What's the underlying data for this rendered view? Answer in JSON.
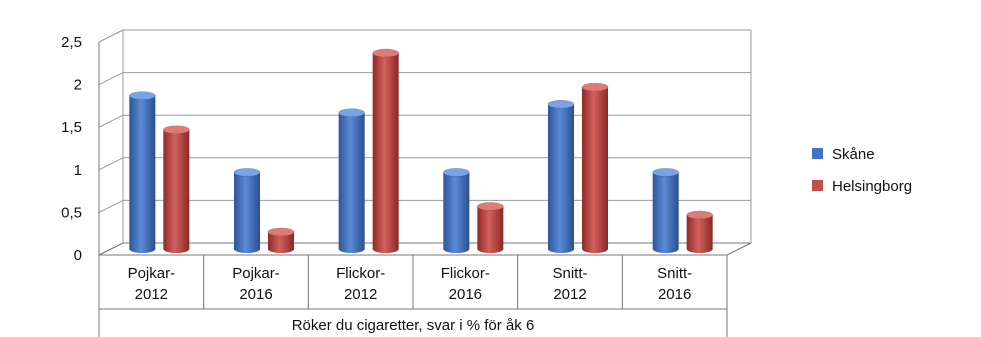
{
  "chart_data": {
    "type": "bar",
    "xlabel": "Röker du cigaretter, svar i % för åk 6",
    "categories": [
      [
        "Pojkar-",
        "2012"
      ],
      [
        "Pojkar-",
        "2016"
      ],
      [
        "Flickor-",
        "2012"
      ],
      [
        "Flickor-",
        "2016"
      ],
      [
        "Snitt-",
        "2012"
      ],
      [
        "Snitt-",
        "2016"
      ]
    ],
    "series": [
      {
        "name": "Skåne",
        "color": "#4472C4",
        "values": [
          1.8,
          0.9,
          1.6,
          0.9,
          1.7,
          0.9
        ]
      },
      {
        "name": "Helsingborg",
        "color": "#C0504D",
        "values": [
          1.4,
          0.2,
          2.3,
          0.5,
          1.9,
          0.4
        ]
      }
    ],
    "y_ticks": [
      "0",
      "0,5",
      "1",
      "1,5",
      "2",
      "2,5"
    ],
    "ylim": [
      0,
      2.5
    ],
    "grid": true,
    "legend_position": "right"
  }
}
